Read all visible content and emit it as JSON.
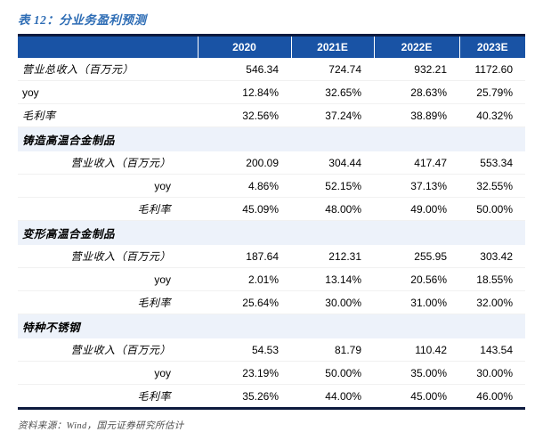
{
  "title": "表 12：分业务盈利预测",
  "table": {
    "columns": [
      "",
      "2020",
      "2021E",
      "2022E",
      "2023E"
    ],
    "rows": [
      {
        "label": "营业总收入（百万元）",
        "type": "top",
        "values": [
          "546.34",
          "724.74",
          "932.21",
          "1172.60"
        ]
      },
      {
        "label": "yoy",
        "type": "top",
        "values": [
          "12.84%",
          "32.65%",
          "28.63%",
          "25.79%"
        ]
      },
      {
        "label": "毛利率",
        "type": "top",
        "values": [
          "32.56%",
          "37.24%",
          "38.89%",
          "40.32%"
        ]
      },
      {
        "label": "铸造高温合金制品",
        "type": "section",
        "values": [
          "",
          "",
          "",
          ""
        ]
      },
      {
        "label": "营业收入（百万元）",
        "type": "sub",
        "values": [
          "200.09",
          "304.44",
          "417.47",
          "553.34"
        ]
      },
      {
        "label": "yoy",
        "type": "sub",
        "values": [
          "4.86%",
          "52.15%",
          "37.13%",
          "32.55%"
        ]
      },
      {
        "label": "毛利率",
        "type": "sub",
        "values": [
          "45.09%",
          "48.00%",
          "49.00%",
          "50.00%"
        ]
      },
      {
        "label": "变形高温合金制品",
        "type": "section",
        "values": [
          "",
          "",
          "",
          ""
        ]
      },
      {
        "label": "营业收入（百万元）",
        "type": "sub",
        "values": [
          "187.64",
          "212.31",
          "255.95",
          "303.42"
        ]
      },
      {
        "label": "yoy",
        "type": "sub",
        "values": [
          "2.01%",
          "13.14%",
          "20.56%",
          "18.55%"
        ]
      },
      {
        "label": "毛利率",
        "type": "sub",
        "values": [
          "25.64%",
          "30.00%",
          "31.00%",
          "32.00%"
        ]
      },
      {
        "label": "特种不锈钢",
        "type": "section",
        "values": [
          "",
          "",
          "",
          ""
        ]
      },
      {
        "label": "营业收入（百万元）",
        "type": "sub",
        "values": [
          "54.53",
          "81.79",
          "110.42",
          "143.54"
        ]
      },
      {
        "label": "yoy",
        "type": "sub",
        "values": [
          "23.19%",
          "50.00%",
          "35.00%",
          "30.00%"
        ]
      },
      {
        "label": "毛利率",
        "type": "sub",
        "values": [
          "35.26%",
          "44.00%",
          "45.00%",
          "46.00%"
        ]
      }
    ]
  },
  "source": "资料来源：Wind，国元证券研究所估计",
  "colors": {
    "header_bg": "#1953A5",
    "border_navy": "#0C1A3E",
    "title_blue": "#2E6DB5",
    "section_row_bg": "#EDF2FA",
    "source_gray": "#4D4D4D"
  }
}
